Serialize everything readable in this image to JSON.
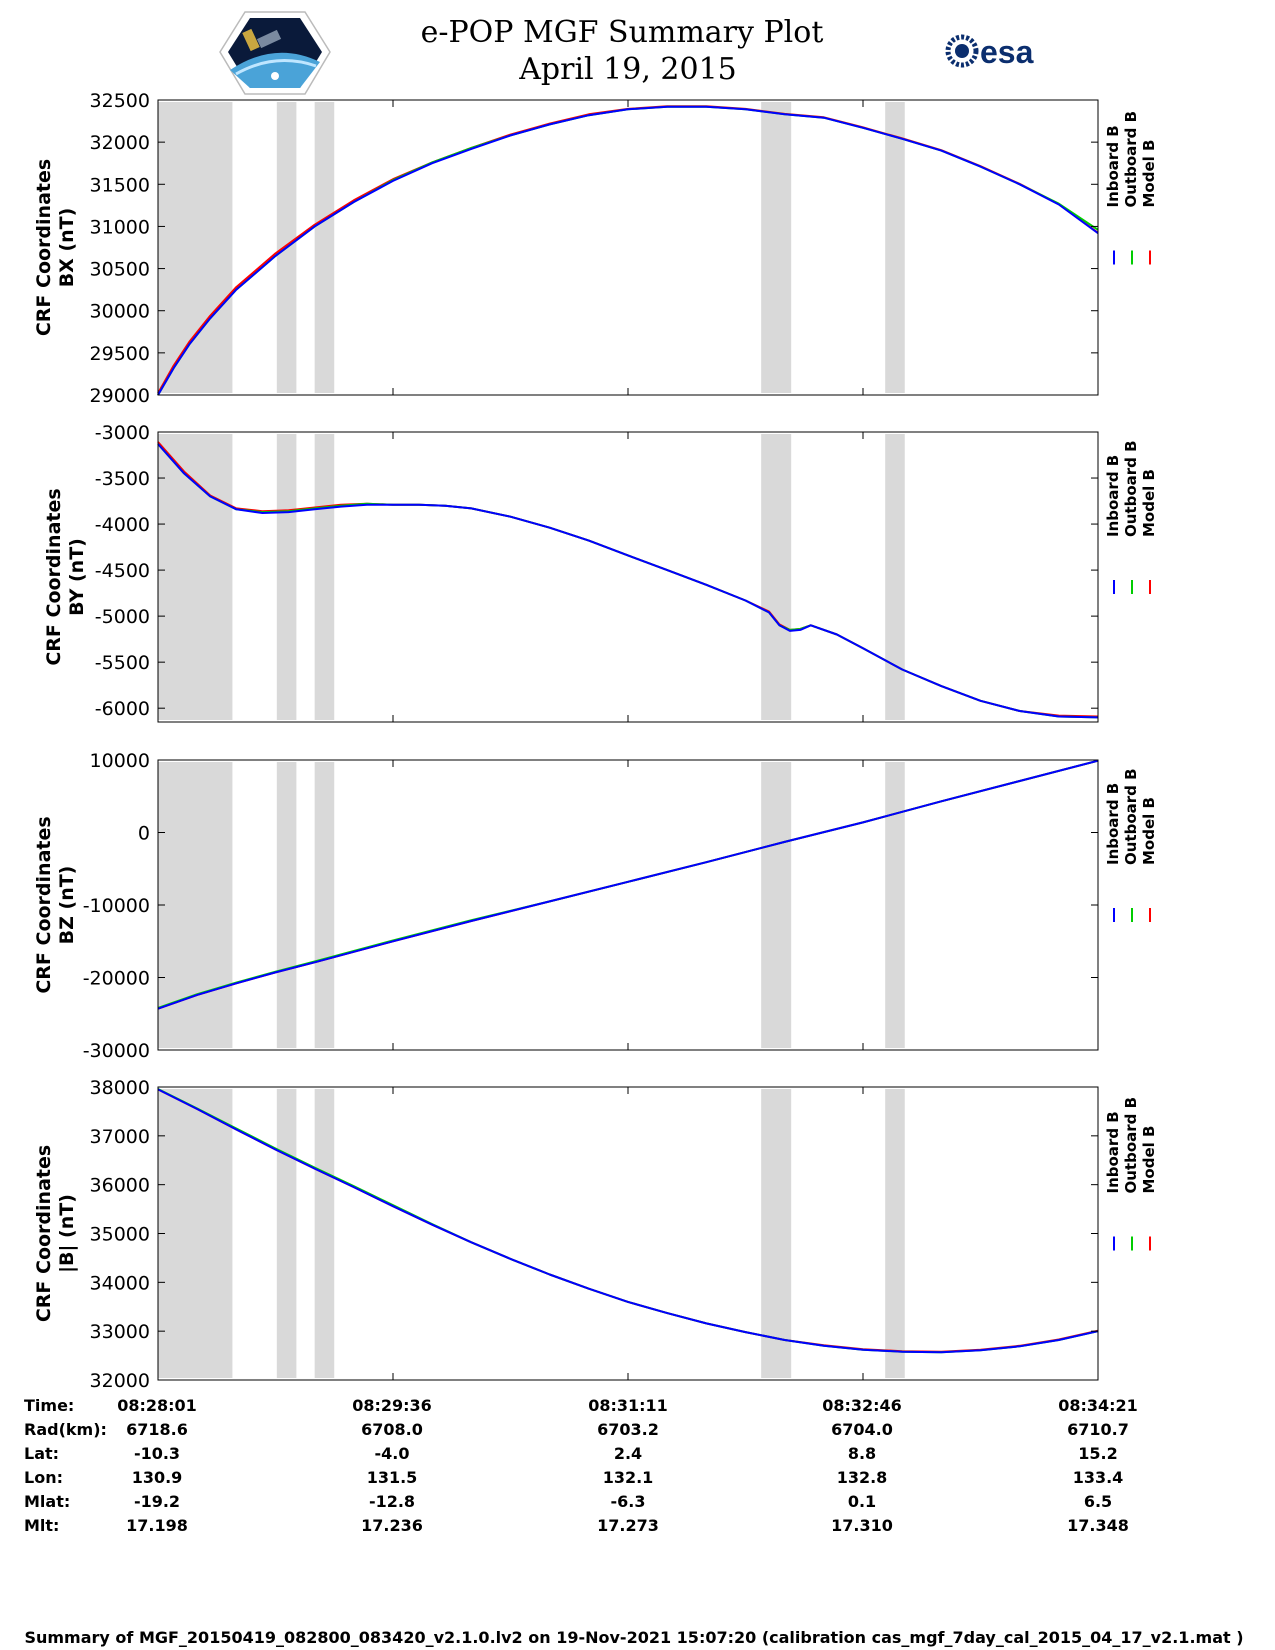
{
  "header": {
    "title_line1": "e-POP MGF Summary Plot",
    "title_line2": "April 19, 2015",
    "esa_logo_text": "esa"
  },
  "legend": [
    "Inboard B",
    "Outboard B",
    "Model B"
  ],
  "colors": {
    "inboard": "#0000ff",
    "outboard": "#00cc00",
    "model": "#ff0000",
    "shade": "#d9d9d9"
  },
  "chart_data": [
    {
      "type": "line",
      "ylabel_line1": "CRF Coordinates",
      "ylabel_line2": "BX (nT)",
      "ylim": [
        29000,
        32500
      ],
      "yticks": [
        29000,
        29500,
        30000,
        30500,
        31000,
        31500,
        32000,
        32500
      ],
      "x": [
        0,
        6,
        12,
        20,
        30,
        45,
        60,
        75,
        90,
        105,
        120,
        135,
        150,
        165,
        180,
        195,
        210,
        225,
        240,
        255,
        270,
        285,
        300,
        315,
        330,
        345,
        360
      ],
      "series": [
        {
          "name": "Inboard B",
          "values": [
            29000,
            29320,
            29600,
            29910,
            30250,
            30650,
            31000,
            31290,
            31540,
            31750,
            31920,
            32080,
            32210,
            32320,
            32390,
            32420,
            32420,
            32390,
            32330,
            32290,
            32170,
            32040,
            31900,
            31710,
            31500,
            31260,
            30920
          ]
        },
        {
          "name": "Outboard B",
          "values": [
            29000,
            29320,
            29600,
            29910,
            30250,
            30650,
            31000,
            31290,
            31550,
            31760,
            31930,
            32080,
            32210,
            32320,
            32390,
            32420,
            32420,
            32390,
            32330,
            32290,
            32170,
            32040,
            31900,
            31710,
            31500,
            31270,
            30960
          ]
        },
        {
          "name": "Model B",
          "values": [
            29020,
            29350,
            29630,
            29940,
            30280,
            30680,
            31020,
            31310,
            31560,
            31760,
            31930,
            32090,
            32220,
            32330,
            32395,
            32425,
            32425,
            32395,
            32335,
            32295,
            32175,
            32045,
            31905,
            31715,
            31505,
            31265,
            30925
          ]
        }
      ]
    },
    {
      "type": "line",
      "ylabel_line1": "CRF Coordinates",
      "ylabel_line2": "BY (nT)",
      "ylim": [
        -6150,
        -3000
      ],
      "yticks": [
        -3000,
        -3500,
        -4000,
        -4500,
        -5000,
        -5500,
        -6000
      ],
      "x": [
        0,
        10,
        20,
        30,
        40,
        50,
        60,
        70,
        80,
        90,
        100,
        110,
        120,
        135,
        150,
        165,
        180,
        195,
        210,
        225,
        234,
        238,
        242,
        246,
        250,
        260,
        270,
        285,
        300,
        315,
        330,
        345,
        360
      ],
      "series": [
        {
          "name": "Inboard B",
          "values": [
            -3130,
            -3450,
            -3700,
            -3840,
            -3880,
            -3870,
            -3840,
            -3810,
            -3790,
            -3790,
            -3790,
            -3800,
            -3830,
            -3920,
            -4040,
            -4180,
            -4340,
            -4500,
            -4660,
            -4830,
            -4960,
            -5100,
            -5160,
            -5150,
            -5100,
            -5200,
            -5350,
            -5580,
            -5760,
            -5920,
            -6030,
            -6090,
            -6100
          ]
        },
        {
          "name": "Outboard B",
          "values": [
            -3130,
            -3450,
            -3700,
            -3840,
            -3870,
            -3860,
            -3830,
            -3800,
            -3780,
            -3790,
            -3790,
            -3800,
            -3830,
            -3920,
            -4040,
            -4180,
            -4340,
            -4500,
            -4660,
            -4830,
            -4960,
            -5100,
            -5150,
            -5140,
            -5100,
            -5200,
            -5350,
            -5580,
            -5760,
            -5920,
            -6030,
            -6090,
            -6100
          ]
        },
        {
          "name": "Model B",
          "values": [
            -3110,
            -3430,
            -3690,
            -3830,
            -3860,
            -3850,
            -3820,
            -3790,
            -3780,
            -3790,
            -3790,
            -3800,
            -3830,
            -3920,
            -4040,
            -4180,
            -4340,
            -4500,
            -4660,
            -4830,
            -4950,
            -5090,
            -5150,
            -5140,
            -5100,
            -5200,
            -5350,
            -5580,
            -5760,
            -5920,
            -6030,
            -6080,
            -6090
          ]
        }
      ]
    },
    {
      "type": "line",
      "ylabel_line1": "CRF Coordinates",
      "ylabel_line2": "BZ (nT)",
      "ylim": [
        -30000,
        10000
      ],
      "yticks": [
        10000,
        0,
        -10000,
        -20000,
        -30000
      ],
      "x": [
        0,
        15,
        30,
        45,
        60,
        90,
        120,
        150,
        180,
        210,
        240,
        270,
        300,
        330,
        360
      ],
      "series": [
        {
          "name": "Inboard B",
          "values": [
            -24300,
            -22400,
            -20800,
            -19300,
            -17900,
            -15000,
            -12200,
            -9500,
            -6800,
            -4100,
            -1300,
            1400,
            4300,
            7100,
            9900
          ]
        },
        {
          "name": "Outboard B",
          "values": [
            -24200,
            -22300,
            -20700,
            -19200,
            -17800,
            -14900,
            -12100,
            -9500,
            -6800,
            -4100,
            -1300,
            1400,
            4300,
            7100,
            9900
          ]
        },
        {
          "name": "Model B",
          "values": [
            -24300,
            -22400,
            -20800,
            -19300,
            -17900,
            -15000,
            -12200,
            -9500,
            -6800,
            -4100,
            -1300,
            1400,
            4300,
            7100,
            9900
          ]
        }
      ]
    },
    {
      "type": "line",
      "ylabel_line1": "CRF Coordinates",
      "ylabel_line2": "|B| (nT)",
      "ylim": [
        32000,
        38000
      ],
      "yticks": [
        32000,
        33000,
        34000,
        35000,
        36000,
        37000,
        38000
      ],
      "x": [
        0,
        15,
        30,
        45,
        60,
        75,
        90,
        105,
        120,
        135,
        150,
        165,
        180,
        195,
        210,
        225,
        240,
        255,
        270,
        285,
        300,
        315,
        330,
        345,
        360
      ],
      "series": [
        {
          "name": "Inboard B",
          "values": [
            37950,
            37550,
            37130,
            36720,
            36330,
            35950,
            35560,
            35180,
            34820,
            34480,
            34160,
            33870,
            33600,
            33370,
            33160,
            32980,
            32820,
            32700,
            32620,
            32580,
            32570,
            32610,
            32690,
            32820,
            33000
          ]
        },
        {
          "name": "Outboard B",
          "values": [
            37960,
            37560,
            37150,
            36740,
            36350,
            35970,
            35580,
            35190,
            34820,
            34480,
            34160,
            33870,
            33600,
            33370,
            33160,
            32980,
            32820,
            32700,
            32620,
            32580,
            32570,
            32610,
            32690,
            32820,
            33000
          ]
        },
        {
          "name": "Model B",
          "values": [
            37950,
            37550,
            37130,
            36720,
            36330,
            35950,
            35560,
            35180,
            34820,
            34480,
            34160,
            33870,
            33600,
            33370,
            33160,
            32980,
            32820,
            32710,
            32630,
            32590,
            32580,
            32620,
            32700,
            32830,
            33010
          ]
        }
      ]
    }
  ],
  "x_axis": {
    "range": [
      0,
      360
    ],
    "tick_positions": [
      0,
      90,
      180,
      270,
      360
    ],
    "shaded_intervals": [
      [
        0,
        28.5
      ],
      [
        45.5,
        53
      ],
      [
        60,
        67.5
      ],
      [
        231,
        242.5
      ],
      [
        278.5,
        286
      ]
    ]
  },
  "info_table": {
    "rows": [
      {
        "label": "Time:",
        "values": [
          "08:28:01",
          "08:29:36",
          "08:31:11",
          "08:32:46",
          "08:34:21"
        ]
      },
      {
        "label": "Rad(km):",
        "values": [
          "6718.6",
          "6708.0",
          "6703.2",
          "6704.0",
          "6710.7"
        ]
      },
      {
        "label": "Lat:",
        "values": [
          "-10.3",
          "-4.0",
          "2.4",
          "8.8",
          "15.2"
        ]
      },
      {
        "label": "Lon:",
        "values": [
          "130.9",
          "131.5",
          "132.1",
          "132.8",
          "133.4"
        ]
      },
      {
        "label": "Mlat:",
        "values": [
          "-19.2",
          "-12.8",
          "-6.3",
          "0.1",
          "6.5"
        ]
      },
      {
        "label": "Mlt:",
        "values": [
          "17.198",
          "17.236",
          "17.273",
          "17.310",
          "17.348"
        ]
      }
    ]
  },
  "footer": "Summary of MGF_20150419_082800_083420_v2.1.0.lv2 on 19-Nov-2021 15:07:20 (calibration cas_mgf_7day_cal_2015_04_17_v2.1.mat )"
}
